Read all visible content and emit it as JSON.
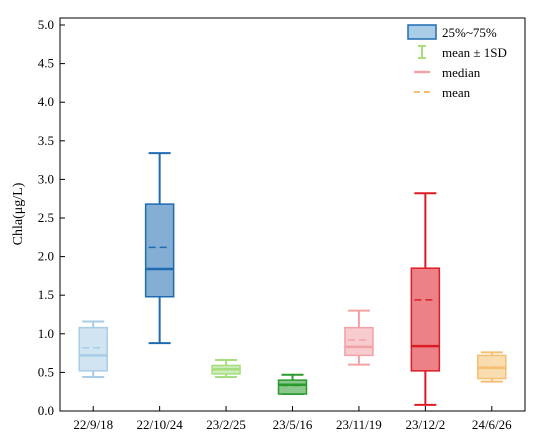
{
  "chart_data": {
    "type": "box",
    "ylabel": "Chla(μg/L)",
    "xlabel": "",
    "ylim": [
      0,
      5.0
    ],
    "yticks": [
      "0.0",
      "0.5",
      "1.0",
      "1.5",
      "2.0",
      "2.5",
      "3.0",
      "3.5",
      "4.0",
      "4.5",
      "5.0"
    ],
    "categories": [
      "22/9/18",
      "22/10/24",
      "23/2/25",
      "23/5/16",
      "23/11/19",
      "23/12/2",
      "24/6/26"
    ],
    "boxes": [
      {
        "label": "22/9/18",
        "color": "#a9cde6",
        "q1": 0.52,
        "q3": 1.08,
        "median": 0.72,
        "mean": 0.82,
        "whisker_low": 0.44,
        "whisker_high": 1.16
      },
      {
        "label": "22/10/24",
        "color": "#1f6bb0",
        "q1": 1.48,
        "q3": 2.68,
        "median": 1.84,
        "mean": 2.12,
        "whisker_low": 0.88,
        "whisker_high": 3.34
      },
      {
        "label": "23/2/25",
        "color": "#a5dd7f",
        "q1": 0.48,
        "q3": 0.59,
        "median": 0.54,
        "mean": 0.54,
        "whisker_low": 0.44,
        "whisker_high": 0.66
      },
      {
        "label": "23/5/16",
        "color": "#2a9a2e",
        "q1": 0.22,
        "q3": 0.4,
        "median": 0.34,
        "mean": 0.33,
        "whisker_low": 0.22,
        "whisker_high": 0.47
      },
      {
        "label": "23/11/19",
        "color": "#f2a1a5",
        "q1": 0.72,
        "q3": 1.08,
        "median": 0.83,
        "mean": 0.92,
        "whisker_low": 0.6,
        "whisker_high": 1.3
      },
      {
        "label": "23/12/2",
        "color": "#dc1c24",
        "q1": 0.52,
        "q3": 1.85,
        "median": 0.84,
        "mean": 1.44,
        "whisker_low": 0.08,
        "whisker_high": 2.82
      },
      {
        "label": "24/6/26",
        "color": "#f5bf72",
        "q1": 0.42,
        "q3": 0.72,
        "median": 0.56,
        "mean": 0.57,
        "whisker_low": 0.38,
        "whisker_high": 0.76
      }
    ],
    "legend": {
      "placement": "top-right",
      "items": [
        {
          "label": "25%~75%",
          "symbol": "box",
          "color": "#1f6bb0",
          "fill": "#a9cde6"
        },
        {
          "label": "mean ± 1SD",
          "symbol": "errorbar",
          "color": "#a5dd7f"
        },
        {
          "label": "median",
          "symbol": "line",
          "color": "#f2a1a5"
        },
        {
          "label": "mean",
          "symbol": "dashline",
          "color": "#f5bf72"
        }
      ]
    }
  }
}
